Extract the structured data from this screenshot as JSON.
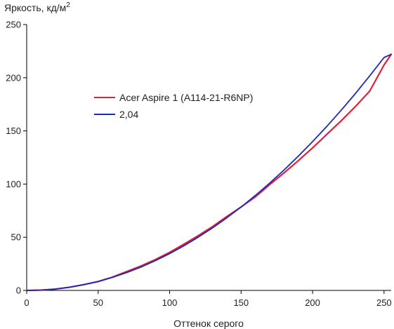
{
  "chart_data": {
    "type": "line",
    "ylabel": "Яркость, кд/м",
    "ylabel_superscript": "2",
    "xlabel": "Оттенок серого",
    "xlim": [
      0,
      255
    ],
    "ylim": [
      0,
      250
    ],
    "x_ticks": [
      0,
      50,
      100,
      150,
      200,
      250
    ],
    "y_ticks": [
      0,
      50,
      100,
      150,
      200,
      250
    ],
    "grid": false,
    "legend_position": "upper-left inside plot",
    "series": [
      {
        "name": "Acer Aspire 1 (A114-21-R6NP)",
        "color": "#e0203a",
        "x": [
          0,
          10,
          20,
          30,
          40,
          50,
          60,
          70,
          80,
          90,
          100,
          110,
          120,
          130,
          140,
          150,
          160,
          170,
          180,
          190,
          200,
          210,
          220,
          230,
          240,
          250,
          255
        ],
        "y": [
          0,
          0.3,
          1.2,
          3,
          5.5,
          8.3,
          12.5,
          17.8,
          23,
          29,
          35.8,
          43.5,
          51.5,
          60,
          69.5,
          78.5,
          88,
          99.5,
          110.5,
          122,
          134,
          146.8,
          159.5,
          173,
          187.5,
          212,
          222
        ]
      },
      {
        "name": "2,04",
        "color": "#1a2ab8",
        "gamma": 2.04,
        "x": [
          0,
          10,
          20,
          30,
          40,
          50,
          60,
          70,
          80,
          90,
          100,
          110,
          120,
          130,
          140,
          150,
          160,
          170,
          180,
          190,
          200,
          210,
          220,
          230,
          240,
          250,
          255
        ],
        "y": [
          0,
          0.3,
          1.3,
          3.0,
          5.4,
          8.5,
          12.3,
          16.8,
          22.0,
          28.0,
          34.6,
          42.0,
          50.1,
          58.8,
          68.3,
          78.4,
          89.3,
          100.9,
          113.2,
          126.2,
          139.9,
          154.3,
          169.4,
          185.2,
          201.8,
          219.0,
          222.0
        ]
      }
    ]
  }
}
